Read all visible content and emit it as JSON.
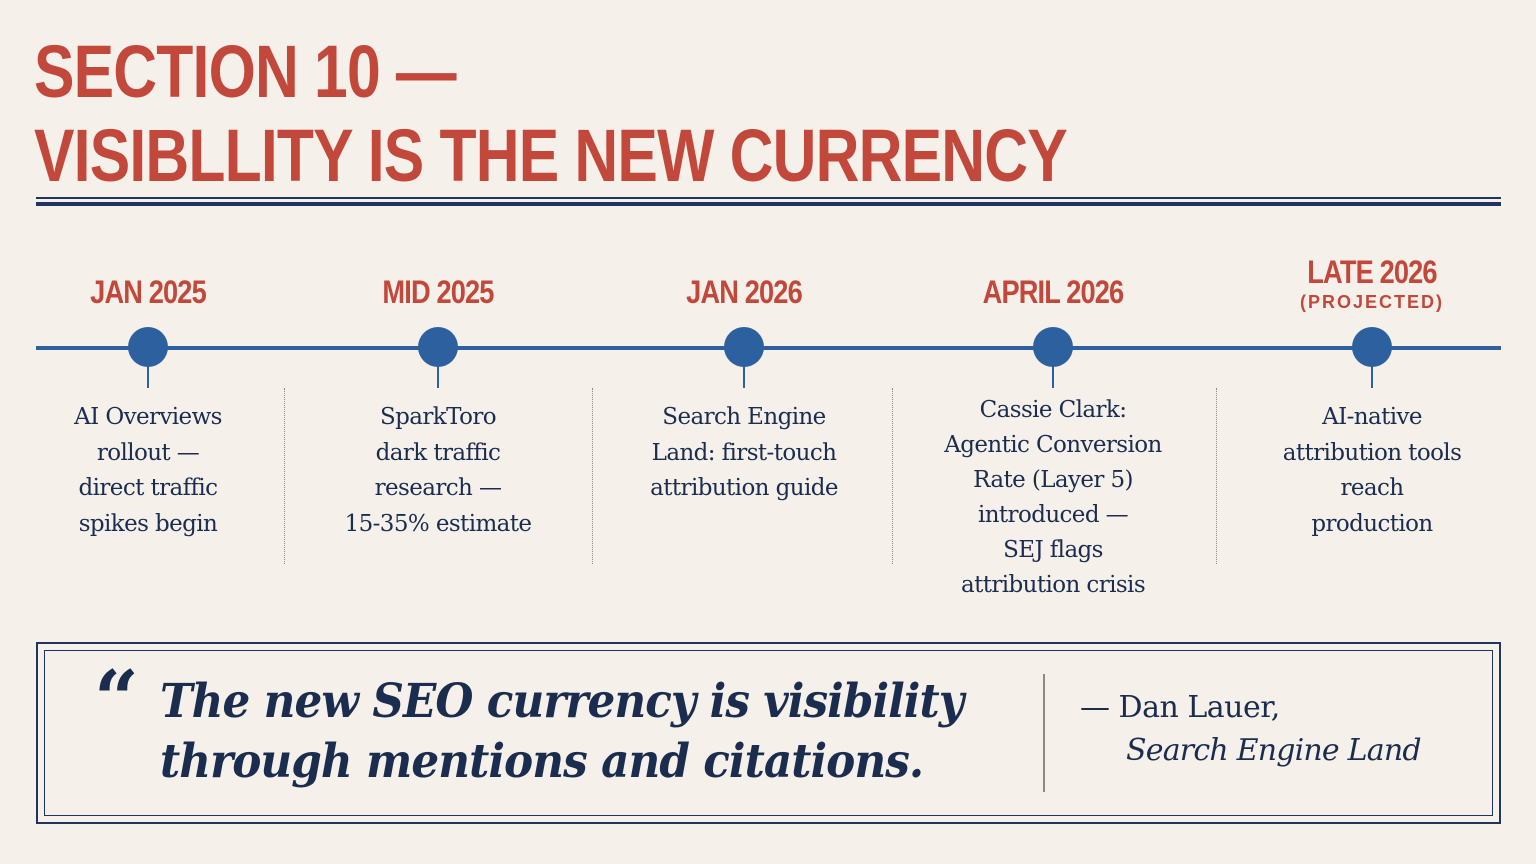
{
  "title": {
    "line1": "SECTION 10 —",
    "line2": "VISIBLLITY IS THE NEW CURRENCY"
  },
  "timeline": {
    "events": [
      {
        "date": "JAN 2025",
        "description": [
          "AI Overviews",
          "rollout —",
          "direct traffic",
          "spikes begin"
        ]
      },
      {
        "date": "MID 2025",
        "description": [
          "SparkToro",
          "dark traffic",
          "research —",
          "15-35% estimate"
        ]
      },
      {
        "date": "JAN 2026",
        "description": [
          "Search Engine",
          "Land: first-touch",
          "attribution guide"
        ]
      },
      {
        "date": "APRIL 2026",
        "description": [
          "Cassie Clark:",
          "Agentic Conversion",
          "Rate (Layer 5)",
          "introduced —",
          "SEJ flags",
          "attribution crisis"
        ]
      },
      {
        "date": "LATE 2026",
        "date_note": "(PROJECTED)",
        "description": [
          "AI-native",
          "attribution tools",
          "reach",
          "production"
        ]
      }
    ]
  },
  "quote": {
    "mark": "“",
    "line1": "The new SEO currency is visibility",
    "line2": "through mentions and citations.",
    "attribution_name": "— Dan Lauer,",
    "attribution_source": "Search Engine Land"
  },
  "colors": {
    "background": "#f5f0ea",
    "accent_red": "#c1483b",
    "timeline_blue": "#2c609e",
    "navy": "#1b2d4f"
  }
}
